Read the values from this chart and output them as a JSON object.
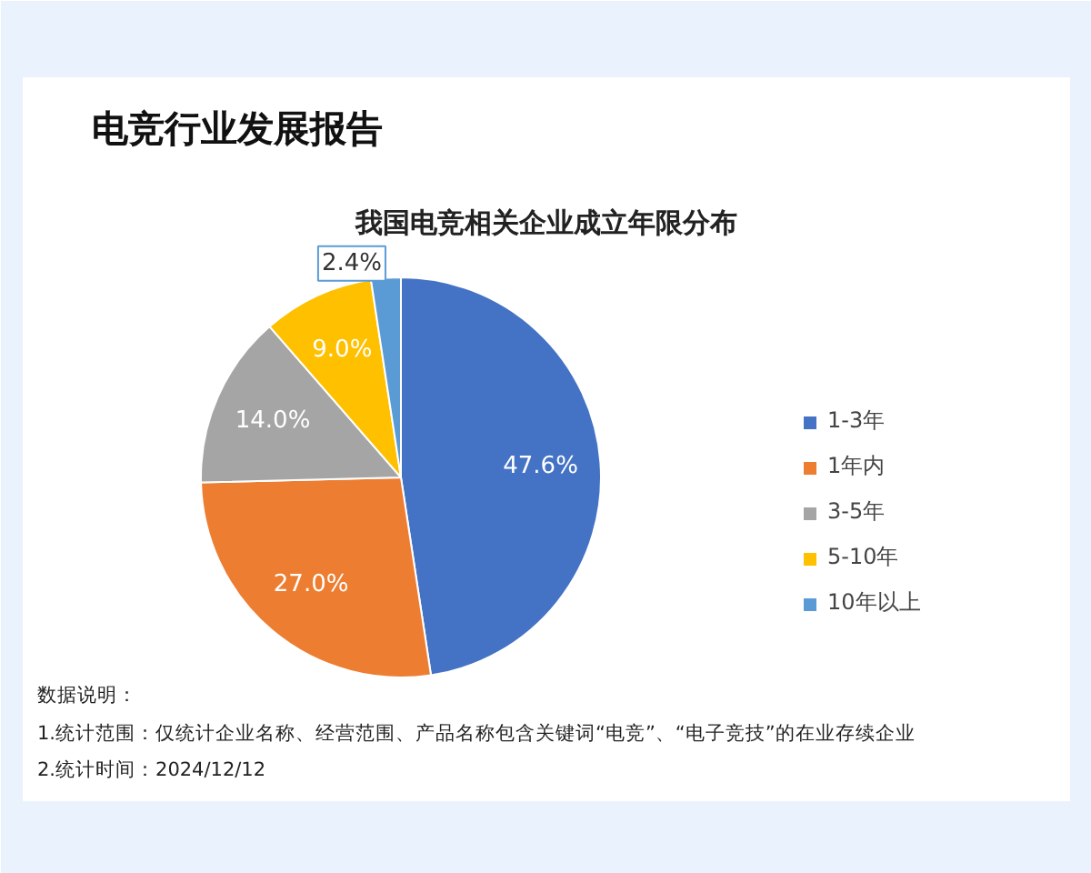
{
  "chart_data": {
    "type": "pie",
    "title": "电竞行业发展报告",
    "subtitle": "我国电竞相关企业成立年限分布",
    "categories": [
      "1-3年",
      "1年内",
      "3-5年",
      "5-10年",
      "10年以上"
    ],
    "values": [
      47.6,
      27.0,
      14.0,
      9.0,
      2.4
    ],
    "value_labels": [
      "47.6%",
      "27.0%",
      "14.0%",
      "9.0%",
      "2.4%"
    ],
    "colors": [
      "#4472c4",
      "#ed7d31",
      "#a5a5a5",
      "#ffc000",
      "#5b9bd5"
    ],
    "legend": "right",
    "annotations": [
      "数据说明：",
      "1.统计范围：仅统计企业名称、经营范围、产品名称包含关键词“电竞”、“电子竞技”的在业存续企业",
      "2.统计时间：2024/12/12"
    ]
  }
}
